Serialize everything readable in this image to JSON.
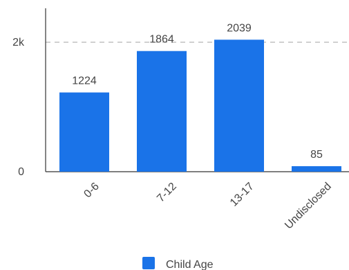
{
  "chart_data": {
    "type": "bar",
    "categories": [
      "0-6",
      "7-12",
      "13-17",
      "Undisclosed"
    ],
    "series": [
      {
        "name": "Child Age",
        "values": [
          1224,
          1864,
          2039,
          85
        ],
        "color": "#1a73e8"
      }
    ],
    "data_labels": [
      "1224",
      "1864",
      "2039",
      "85"
    ],
    "ytick_labels": [
      "0",
      "2k"
    ],
    "yticks": [
      0,
      2000
    ],
    "ylim": [
      0,
      2200
    ],
    "grid": "dashed line at 2k",
    "legend": {
      "position": "bottom",
      "label": "Child Age"
    }
  }
}
